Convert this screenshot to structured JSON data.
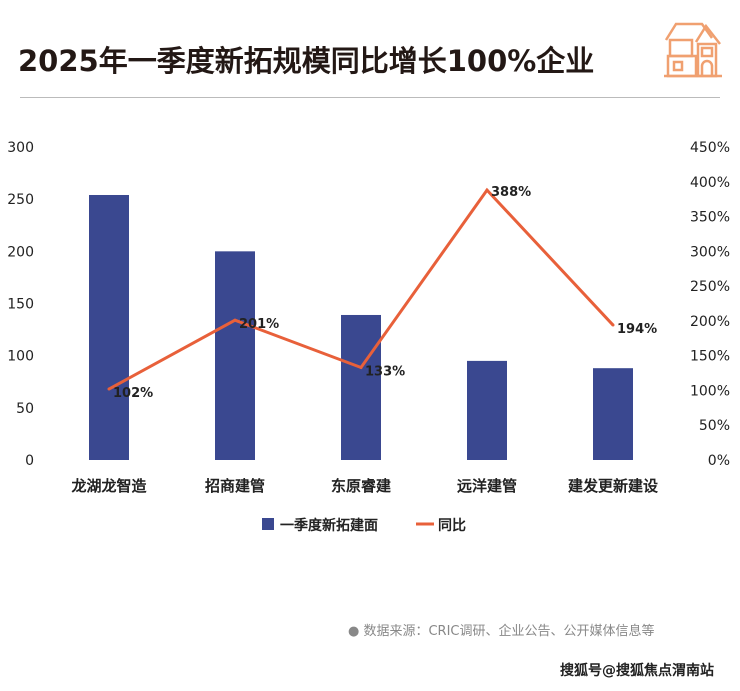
{
  "title": "2025年一季度新拓规模同比增长100%企业",
  "source": "● 数据来源：CRIC调研、企业公告、公开媒体信息等",
  "credit": "搜狐号@搜狐焦点渭南站",
  "colors": {
    "bar": "#3a4890",
    "line": "#e8603a",
    "house": "#f0a070"
  },
  "chart_data": {
    "type": "bar+line",
    "categories": [
      "龙湖龙智造",
      "招商建管",
      "东原睿建",
      "远洋建管",
      "建发更新建设"
    ],
    "series": [
      {
        "name": "一季度新拓建面",
        "type": "bar",
        "axis": "left",
        "values": [
          254,
          200,
          139,
          95,
          88
        ]
      },
      {
        "name": "同比",
        "type": "line",
        "axis": "right",
        "values": [
          102,
          201,
          133,
          388,
          194
        ],
        "labels": [
          "102%",
          "201%",
          "133%",
          "388%",
          "194%"
        ]
      }
    ],
    "left_axis": {
      "ylim": [
        0,
        300
      ],
      "ticks": [
        "0",
        "50",
        "100",
        "150",
        "200",
        "250",
        "300"
      ]
    },
    "right_axis": {
      "ylim": [
        0,
        450
      ],
      "ticks": [
        "0%",
        "50%",
        "100%",
        "150%",
        "200%",
        "250%",
        "300%",
        "350%",
        "400%",
        "450%"
      ]
    },
    "legend": "bottom"
  }
}
